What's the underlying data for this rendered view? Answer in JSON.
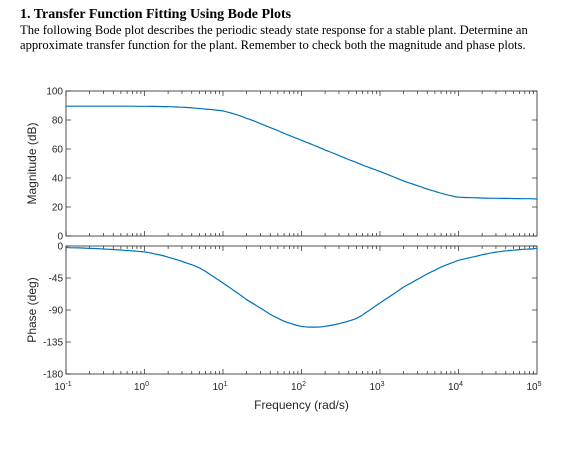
{
  "problem": {
    "title": "1.  Transfer Function Fitting Using Bode Plots",
    "body": "The following Bode plot describes the periodic steady state response for a stable plant. Determine an approximate transfer function for the plant. Remember to check both the magnitude and phase plots."
  },
  "chart_data": [
    {
      "type": "line",
      "panel": "magnitude",
      "ylabel": "Magnitude (dB)",
      "x_scale": "log",
      "xlim": [
        0.1,
        100000
      ],
      "ylim": [
        0,
        100
      ],
      "yticks": [
        0,
        20,
        40,
        60,
        80,
        100
      ],
      "ytick_labels": [
        "0",
        "20",
        "40",
        "60",
        "80",
        "100"
      ],
      "grid": false,
      "line_color": "#0072BD",
      "series": [
        {
          "x": [
            0.1,
            1,
            3,
            10,
            20,
            50,
            100,
            200,
            500,
            1000,
            2000,
            5000,
            10000,
            100000
          ],
          "values": [
            89.5,
            89.5,
            89.0,
            86.5,
            81.5,
            72.5,
            66.0,
            59.5,
            50.5,
            44.5,
            38.0,
            30.5,
            26.5,
            25.5
          ]
        }
      ]
    },
    {
      "type": "line",
      "panel": "phase",
      "ylabel": "Phase (deg)",
      "xlabel": "Frequency  (rad/s)",
      "x_scale": "log",
      "xlim": [
        0.1,
        100000
      ],
      "ylim": [
        -180,
        0
      ],
      "yticks": [
        -180,
        -135,
        -90,
        -45,
        0
      ],
      "ytick_labels": [
        "-180",
        "-135",
        "-90",
        "-45",
        "0"
      ],
      "xticks": [
        0.1,
        1,
        10,
        100,
        1000,
        10000,
        100000
      ],
      "xtick_labels": [
        {
          "base": "10",
          "exp": "-1"
        },
        {
          "base": "10",
          "exp": "0"
        },
        {
          "base": "10",
          "exp": "1"
        },
        {
          "base": "10",
          "exp": "2"
        },
        {
          "base": "10",
          "exp": "3"
        },
        {
          "base": "10",
          "exp": "4"
        },
        {
          "base": "10",
          "exp": "5"
        }
      ],
      "grid": false,
      "line_color": "#0072BD",
      "series": [
        {
          "x": [
            0.1,
            0.3,
            1,
            2,
            5,
            10,
            20,
            50,
            100,
            200,
            500,
            1000,
            2000,
            5000,
            10000,
            30000,
            100000
          ],
          "values": [
            -2,
            -4,
            -8,
            -15,
            -30,
            -52,
            -75,
            -103,
            -114,
            -114,
            -103,
            -80,
            -58,
            -33,
            -20,
            -8,
            -3
          ]
        }
      ]
    }
  ]
}
